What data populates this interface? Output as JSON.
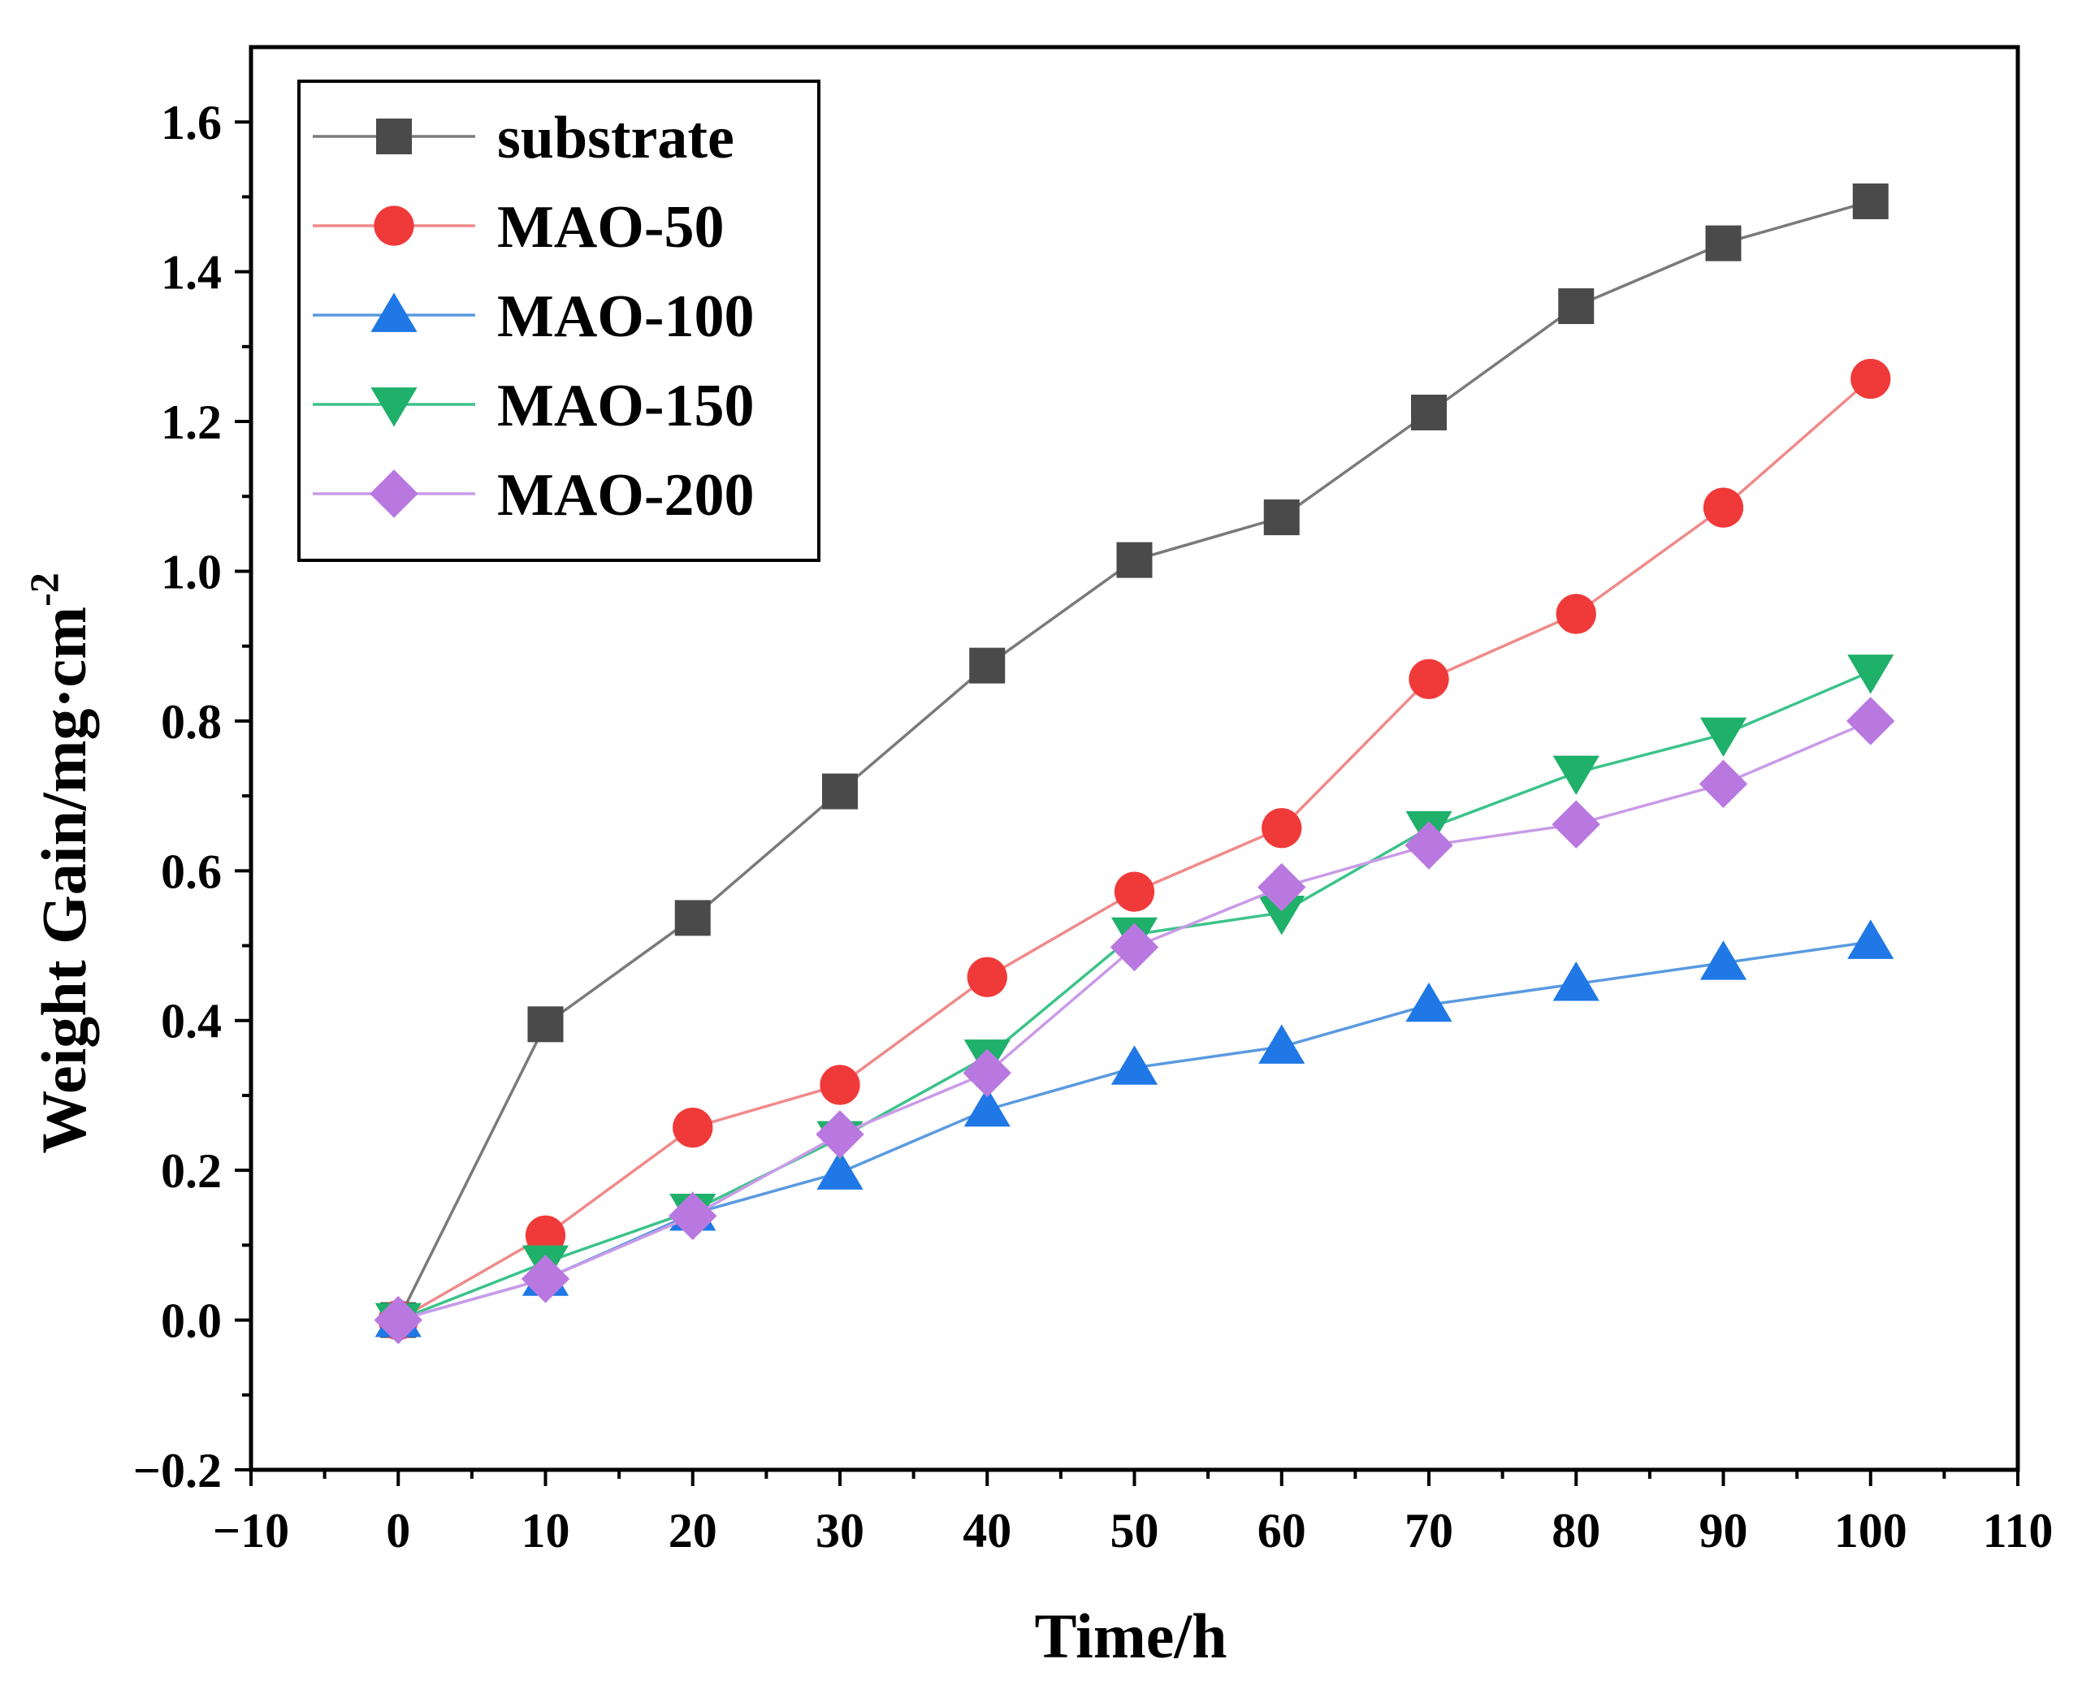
{
  "chart_data": {
    "type": "line",
    "title": "",
    "xlabel": "Time/h",
    "ylabel_main": "Weight Gain/mg·cm",
    "ylabel_sup": "-2",
    "xlim": [
      -10,
      110
    ],
    "ylim": [
      -0.2,
      1.7
    ],
    "x_ticks": [
      -10,
      0,
      10,
      20,
      30,
      40,
      50,
      60,
      70,
      80,
      90,
      100,
      110
    ],
    "x_tick_labels": [
      "−10",
      "0",
      "10",
      "20",
      "30",
      "40",
      "50",
      "60",
      "70",
      "80",
      "90",
      "100",
      "110"
    ],
    "y_ticks": [
      -0.2,
      0.0,
      0.2,
      0.4,
      0.6,
      0.8,
      1.0,
      1.2,
      1.4,
      1.6
    ],
    "y_tick_labels": [
      "−0.2",
      "0.0",
      "0.2",
      "0.4",
      "0.6",
      "0.8",
      "1.0",
      "1.2",
      "1.4",
      "1.6"
    ],
    "grid": false,
    "legend_position": "top-left",
    "x": [
      0,
      10,
      20,
      30,
      40,
      50,
      60,
      70,
      80,
      90,
      100
    ],
    "series": [
      {
        "name": "substrate",
        "marker": "square",
        "line_color": "#7a7a7a",
        "marker_color": "#4a4a4a",
        "values": [
          0.0,
          0.395,
          0.537,
          0.706,
          0.874,
          1.015,
          1.072,
          1.212,
          1.354,
          1.438,
          1.494
        ]
      },
      {
        "name": "MAO-50",
        "marker": "circle",
        "line_color": "#f08a8a",
        "marker_color": "#f03a3a",
        "values": [
          0.0,
          0.113,
          0.257,
          0.314,
          0.458,
          0.572,
          0.657,
          0.856,
          0.943,
          1.085,
          1.257
        ]
      },
      {
        "name": "MAO-100",
        "marker": "triangle-up",
        "line_color": "#5a9ae0",
        "marker_color": "#1f78e6",
        "values": [
          0.0,
          0.055,
          0.142,
          0.197,
          0.281,
          0.337,
          0.365,
          0.421,
          0.449,
          0.477,
          0.505
        ]
      },
      {
        "name": "MAO-150",
        "marker": "triangle-down",
        "line_color": "#3cc38a",
        "marker_color": "#1fb06a",
        "values": [
          0.0,
          0.077,
          0.146,
          0.243,
          0.352,
          0.515,
          0.544,
          0.657,
          0.731,
          0.782,
          0.866
        ]
      },
      {
        "name": "MAO-200",
        "marker": "diamond",
        "line_color": "#c99be8",
        "marker_color": "#b978e0",
        "values": [
          0.0,
          0.055,
          0.139,
          0.248,
          0.33,
          0.498,
          0.578,
          0.634,
          0.662,
          0.716,
          0.8
        ]
      }
    ]
  }
}
